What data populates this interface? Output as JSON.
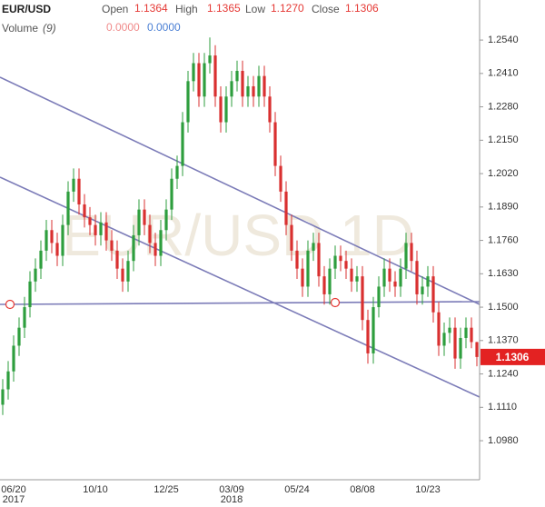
{
  "header": {
    "symbol": "EUR/USD",
    "open_label": "Open",
    "open": "1.1364",
    "high_label": "High",
    "high": "1.1365",
    "low_label": "Low",
    "low": "1.1270",
    "close_label": "Close",
    "close": "1.1306",
    "volume_label": "Volume",
    "volume_period": "(9)",
    "volume_value_1": "0.0000",
    "volume_value_2": "0.0000"
  },
  "chart_data": {
    "type": "candlestick",
    "watermark": "EUR/USD 1D",
    "up_color": "#2e9e3e",
    "down_color": "#d93030",
    "ylim": [
      1.0828,
      1.2696
    ],
    "yticks": [
      {
        "value": 1.098,
        "label": "1.0980"
      },
      {
        "value": 1.111,
        "label": "1.1110"
      },
      {
        "value": 1.124,
        "label": "1.1240"
      },
      {
        "value": 1.137,
        "label": "1.1370"
      },
      {
        "value": 1.15,
        "label": "1.1500"
      },
      {
        "value": 1.163,
        "label": "1.1630"
      },
      {
        "value": 1.176,
        "label": "1.1760"
      },
      {
        "value": 1.189,
        "label": "1.1890"
      },
      {
        "value": 1.202,
        "label": "1.2020"
      },
      {
        "value": 1.215,
        "label": "1.2150"
      },
      {
        "value": 1.228,
        "label": "1.2280"
      },
      {
        "value": 1.241,
        "label": "1.2410"
      },
      {
        "value": 1.254,
        "label": "1.2540"
      }
    ],
    "categories": [
      null,
      null,
      "06/20",
      null,
      null,
      null,
      null,
      null,
      null,
      null,
      null,
      null,
      null,
      null,
      null,
      null,
      null,
      "10/10",
      null,
      null,
      null,
      null,
      null,
      null,
      null,
      null,
      null,
      null,
      null,
      null,
      "12/25",
      null,
      null,
      null,
      null,
      null,
      null,
      null,
      null,
      null,
      null,
      null,
      "03/09",
      null,
      null,
      null,
      null,
      null,
      null,
      null,
      null,
      null,
      null,
      null,
      "05/24",
      null,
      null,
      null,
      null,
      null,
      null,
      null,
      null,
      null,
      null,
      null,
      "08/08",
      null,
      null,
      null,
      null,
      null,
      null,
      null,
      null,
      null,
      null,
      null,
      "10/23",
      null,
      null,
      null,
      null,
      null,
      null,
      null,
      null,
      null
    ],
    "years": [
      null,
      null,
      "2017",
      null,
      null,
      null,
      null,
      null,
      null,
      null,
      null,
      null,
      null,
      null,
      null,
      null,
      null,
      null,
      null,
      null,
      null,
      null,
      null,
      null,
      null,
      null,
      null,
      null,
      null,
      null,
      null,
      null,
      null,
      null,
      null,
      null,
      null,
      null,
      null,
      null,
      null,
      null,
      "2018",
      null,
      null,
      null,
      null,
      null,
      null,
      null,
      null,
      null,
      null,
      null,
      null,
      null,
      null,
      null,
      null,
      null,
      null,
      null,
      null,
      null,
      null,
      null,
      null,
      null,
      null,
      null,
      null,
      null,
      null,
      null,
      null,
      null,
      null,
      null,
      null,
      null,
      null,
      null,
      null,
      null,
      null,
      null
    ],
    "ohlc": [
      [
        1.112,
        1.122,
        1.108,
        1.118
      ],
      [
        1.118,
        1.129,
        1.114,
        1.125
      ],
      [
        1.125,
        1.139,
        1.121,
        1.135
      ],
      [
        1.135,
        1.146,
        1.131,
        1.142
      ],
      [
        1.142,
        1.154,
        1.138,
        1.15
      ],
      [
        1.15,
        1.164,
        1.146,
        1.16
      ],
      [
        1.16,
        1.169,
        1.156,
        1.165
      ],
      [
        1.165,
        1.176,
        1.161,
        1.172
      ],
      [
        1.172,
        1.184,
        1.168,
        1.18
      ],
      [
        1.18,
        1.184,
        1.171,
        1.175
      ],
      [
        1.175,
        1.179,
        1.166,
        1.17
      ],
      [
        1.17,
        1.186,
        1.166,
        1.182
      ],
      [
        1.182,
        1.199,
        1.178,
        1.195
      ],
      [
        1.195,
        1.204,
        1.191,
        1.2
      ],
      [
        1.2,
        1.204,
        1.186,
        1.19
      ],
      [
        1.19,
        1.194,
        1.181,
        1.185
      ],
      [
        1.185,
        1.189,
        1.178,
        1.182
      ],
      [
        1.182,
        1.186,
        1.174,
        1.178
      ],
      [
        1.178,
        1.187,
        1.174,
        1.183
      ],
      [
        1.183,
        1.187,
        1.172,
        1.176
      ],
      [
        1.176,
        1.18,
        1.168,
        1.172
      ],
      [
        1.172,
        1.176,
        1.161,
        1.165
      ],
      [
        1.165,
        1.169,
        1.156,
        1.16
      ],
      [
        1.16,
        1.172,
        1.156,
        1.168
      ],
      [
        1.168,
        1.182,
        1.164,
        1.178
      ],
      [
        1.178,
        1.192,
        1.174,
        1.188
      ],
      [
        1.188,
        1.192,
        1.178,
        1.182
      ],
      [
        1.182,
        1.186,
        1.171,
        1.175
      ],
      [
        1.175,
        1.179,
        1.166,
        1.17
      ],
      [
        1.17,
        1.184,
        1.166,
        1.18
      ],
      [
        1.18,
        1.192,
        1.176,
        1.188
      ],
      [
        1.188,
        1.204,
        1.184,
        1.2
      ],
      [
        1.2,
        1.209,
        1.196,
        1.205
      ],
      [
        1.205,
        1.226,
        1.201,
        1.222
      ],
      [
        1.222,
        1.242,
        1.218,
        1.238
      ],
      [
        1.238,
        1.249,
        1.234,
        1.245
      ],
      [
        1.245,
        1.249,
        1.228,
        1.232
      ],
      [
        1.232,
        1.249,
        1.228,
        1.245
      ],
      [
        1.245,
        1.255,
        1.241,
        1.248
      ],
      [
        1.248,
        1.252,
        1.228,
        1.232
      ],
      [
        1.232,
        1.236,
        1.218,
        1.222
      ],
      [
        1.222,
        1.236,
        1.218,
        1.232
      ],
      [
        1.232,
        1.242,
        1.228,
        1.238
      ],
      [
        1.238,
        1.246,
        1.234,
        1.242
      ],
      [
        1.242,
        1.246,
        1.228,
        1.232
      ],
      [
        1.232,
        1.24,
        1.228,
        1.236
      ],
      [
        1.236,
        1.24,
        1.228,
        1.232
      ],
      [
        1.232,
        1.244,
        1.228,
        1.24
      ],
      [
        1.24,
        1.244,
        1.228,
        1.232
      ],
      [
        1.232,
        1.236,
        1.218,
        1.222
      ],
      [
        1.222,
        1.226,
        1.201,
        1.205
      ],
      [
        1.205,
        1.209,
        1.191,
        1.195
      ],
      [
        1.195,
        1.199,
        1.178,
        1.182
      ],
      [
        1.182,
        1.186,
        1.168,
        1.172
      ],
      [
        1.172,
        1.176,
        1.161,
        1.165
      ],
      [
        1.165,
        1.169,
        1.154,
        1.158
      ],
      [
        1.158,
        1.176,
        1.154,
        1.172
      ],
      [
        1.172,
        1.179,
        1.168,
        1.175
      ],
      [
        1.175,
        1.179,
        1.158,
        1.162
      ],
      [
        1.162,
        1.166,
        1.151,
        1.155
      ],
      [
        1.155,
        1.169,
        1.151,
        1.165
      ],
      [
        1.165,
        1.174,
        1.161,
        1.17
      ],
      [
        1.17,
        1.174,
        1.164,
        1.168
      ],
      [
        1.168,
        1.172,
        1.161,
        1.165
      ],
      [
        1.165,
        1.169,
        1.156,
        1.16
      ],
      [
        1.16,
        1.166,
        1.156,
        1.162
      ],
      [
        1.162,
        1.166,
        1.141,
        1.145
      ],
      [
        1.145,
        1.149,
        1.128,
        1.132
      ],
      [
        1.132,
        1.154,
        1.128,
        1.15
      ],
      [
        1.15,
        1.162,
        1.146,
        1.158
      ],
      [
        1.158,
        1.169,
        1.154,
        1.165
      ],
      [
        1.165,
        1.169,
        1.156,
        1.16
      ],
      [
        1.16,
        1.164,
        1.154,
        1.158
      ],
      [
        1.158,
        1.169,
        1.154,
        1.165
      ],
      [
        1.165,
        1.179,
        1.161,
        1.175
      ],
      [
        1.175,
        1.179,
        1.164,
        1.168
      ],
      [
        1.168,
        1.172,
        1.151,
        1.155
      ],
      [
        1.155,
        1.162,
        1.151,
        1.158
      ],
      [
        1.158,
        1.166,
        1.154,
        1.162
      ],
      [
        1.162,
        1.166,
        1.144,
        1.148
      ],
      [
        1.148,
        1.152,
        1.131,
        1.135
      ],
      [
        1.135,
        1.144,
        1.131,
        1.14
      ],
      [
        1.14,
        1.146,
        1.136,
        1.142
      ],
      [
        1.142,
        1.146,
        1.126,
        1.13
      ],
      [
        1.13,
        1.142,
        1.126,
        1.138
      ],
      [
        1.138,
        1.146,
        1.134,
        1.142
      ],
      [
        1.142,
        1.146,
        1.134,
        1.1364
      ],
      [
        1.1364,
        1.1365,
        1.127,
        1.1306
      ]
    ]
  }
}
